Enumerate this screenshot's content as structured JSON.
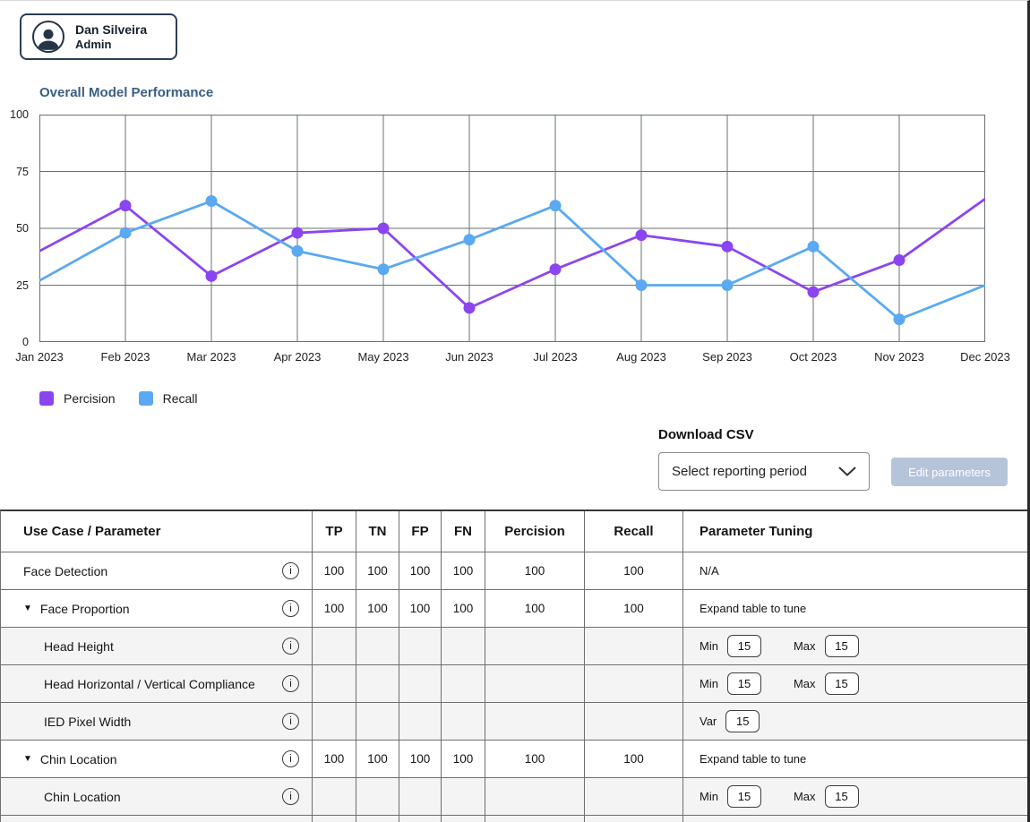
{
  "user_badge": {
    "name": "Dan Silveira",
    "role": "Admin"
  },
  "chart": {
    "title": "Overall Model Performance"
  },
  "chart_data": {
    "type": "line",
    "x": [
      "Jan 2023",
      "Feb 2023",
      "Mar 2023",
      "Apr 2023",
      "May 2023",
      "Jun 2023",
      "Jul 2023",
      "Aug 2023",
      "Sep 2023",
      "Oct 2023",
      "Nov 2023",
      "Dec 2023"
    ],
    "series": [
      {
        "name": "Percision",
        "color": "#8b45f0",
        "values": [
          40,
          60,
          29,
          48,
          50,
          15,
          32,
          47,
          42,
          22,
          36,
          63
        ]
      },
      {
        "name": "Recall",
        "color": "#5aa9f2",
        "values": [
          27,
          48,
          62,
          40,
          32,
          45,
          60,
          25,
          25,
          42,
          10,
          25
        ]
      }
    ],
    "title": "Overall Model Performance",
    "xlabel": "",
    "ylabel": "",
    "ylim": [
      0,
      100
    ],
    "yticks": [
      0,
      25,
      50,
      75,
      100
    ],
    "grid": true,
    "legend_position": "bottom-left"
  },
  "download": {
    "label": "Download CSV",
    "dropdown_value": "Select reporting period",
    "edit_button_label": "Edit parameters"
  },
  "table": {
    "headers": [
      "Use Case / Parameter",
      "TP",
      "TN",
      "FP",
      "FN",
      "Percision",
      "Recall",
      "Parameter Tuning"
    ],
    "rows": [
      {
        "label": "Face Detection",
        "expander": false,
        "sub": false,
        "info": true,
        "shaded": false,
        "cells": [
          "100",
          "100",
          "100",
          "100",
          "100",
          "100"
        ],
        "tuning": {
          "type": "text",
          "text": "N/A"
        }
      },
      {
        "label": "Face Proportion",
        "expander": true,
        "sub": false,
        "info": true,
        "shaded": false,
        "cells": [
          "100",
          "100",
          "100",
          "100",
          "100",
          "100"
        ],
        "tuning": {
          "type": "text",
          "text": "Expand table to tune"
        }
      },
      {
        "label": "Head Height",
        "expander": false,
        "sub": true,
        "info": true,
        "shaded": true,
        "cells": [
          "",
          "",
          "",
          "",
          "",
          ""
        ],
        "tuning": {
          "type": "minmax",
          "min_label": "Min",
          "min": "15",
          "max_label": "Max",
          "max": "15"
        }
      },
      {
        "label": "Head Horizontal / Vertical Compliance",
        "expander": false,
        "sub": true,
        "info": true,
        "shaded": true,
        "cells": [
          "",
          "",
          "",
          "",
          "",
          ""
        ],
        "tuning": {
          "type": "minmax",
          "min_label": "Min",
          "min": "15",
          "max_label": "Max",
          "max": "15"
        }
      },
      {
        "label": "IED Pixel Width",
        "expander": false,
        "sub": true,
        "info": true,
        "shaded": true,
        "cells": [
          "",
          "",
          "",
          "",
          "",
          ""
        ],
        "tuning": {
          "type": "var",
          "var_label": "Var",
          "var": "15"
        }
      },
      {
        "label": "Chin Location",
        "expander": true,
        "sub": false,
        "info": true,
        "shaded": false,
        "cells": [
          "100",
          "100",
          "100",
          "100",
          "100",
          "100"
        ],
        "tuning": {
          "type": "text",
          "text": "Expand table to tune"
        }
      },
      {
        "label": "Chin Location",
        "expander": false,
        "sub": true,
        "info": true,
        "shaded": true,
        "cells": [
          "",
          "",
          "",
          "",
          "",
          ""
        ],
        "tuning": {
          "type": "minmax",
          "min_label": "Min",
          "min": "15",
          "max_label": "Max",
          "max": "15"
        }
      },
      {
        "label": "",
        "expander": false,
        "sub": true,
        "info": false,
        "shaded": true,
        "partial": true,
        "cells": [
          "",
          "",
          "",
          "",
          "",
          ""
        ],
        "tuning": {
          "type": "none"
        }
      }
    ]
  }
}
